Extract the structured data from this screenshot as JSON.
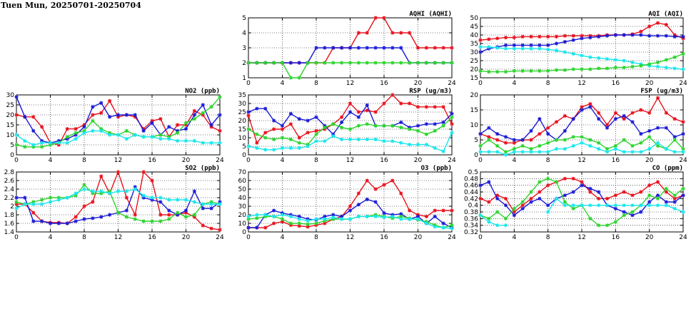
{
  "page": {
    "title": "Tuen Mun, 20250701-20250704"
  },
  "colors": {
    "red": "#e8101c",
    "blue": "#1a1ad6",
    "green": "#2cd42c",
    "cyan": "#19e6ec"
  },
  "chart_data": [
    {
      "id": "aqhi",
      "type": "line",
      "title": "AQHI (AQHI)",
      "xticks": [
        0,
        4,
        8,
        12,
        16,
        20,
        24
      ],
      "xlim": [
        0,
        24
      ],
      "ylim": [
        1,
        5
      ],
      "yticks": [
        1,
        2,
        3,
        4,
        5
      ],
      "grid": true,
      "series": [
        {
          "color": "red",
          "values": [
            2,
            2,
            2,
            2,
            2,
            2,
            2,
            2,
            2,
            2,
            3,
            3,
            3,
            4,
            4,
            5,
            5,
            4,
            4,
            4,
            3,
            3,
            3,
            3,
            3
          ]
        },
        {
          "color": "blue",
          "values": [
            2,
            2,
            2,
            2,
            2,
            2,
            2,
            2,
            3,
            3,
            3,
            3,
            3,
            3,
            3,
            3,
            3,
            3,
            3,
            2,
            2,
            2,
            2,
            2,
            2
          ]
        },
        {
          "color": "green",
          "values": [
            2,
            2,
            2,
            2,
            2,
            1,
            1,
            2,
            2,
            2,
            2,
            2,
            2,
            2,
            2,
            2,
            2,
            2,
            2,
            2,
            2,
            2,
            2,
            2,
            2
          ]
        }
      ]
    },
    {
      "id": "aqi",
      "type": "line",
      "title": "AQI (AQI)",
      "xticks": [
        0,
        4,
        8,
        12,
        16,
        20,
        24
      ],
      "xlim": [
        0,
        24
      ],
      "ylim": [
        15,
        50
      ],
      "yticks": [
        15,
        20,
        25,
        30,
        35,
        40,
        45,
        50
      ],
      "grid": true,
      "series": [
        {
          "color": "red",
          "values": [
            37,
            37.5,
            38,
            38.5,
            38.5,
            39,
            39,
            39,
            39,
            39,
            39.5,
            39.5,
            39.5,
            39.5,
            39.5,
            40,
            40,
            40,
            40.5,
            42,
            45,
            47,
            46,
            40,
            38
          ]
        },
        {
          "color": "blue",
          "values": [
            30,
            32,
            33,
            34,
            34,
            34,
            34,
            34,
            34,
            35,
            36,
            37,
            38,
            38.5,
            39,
            39.5,
            40,
            40,
            40,
            40,
            39.5,
            39.5,
            39.5,
            39,
            39
          ]
        },
        {
          "color": "cyan",
          "values": [
            33,
            33,
            32.5,
            32,
            32,
            32,
            32,
            32,
            31.5,
            31,
            30,
            29,
            28,
            27,
            26.5,
            26,
            25.5,
            25,
            24,
            23,
            22,
            21.5,
            21,
            20.5,
            20
          ]
        },
        {
          "color": "green",
          "values": [
            19,
            18.5,
            18.5,
            18.5,
            19,
            19,
            19,
            19,
            19,
            19.5,
            19.5,
            20,
            20,
            20,
            20.5,
            20.5,
            21,
            21,
            21.5,
            22,
            23,
            24,
            25.5,
            27,
            29
          ]
        }
      ]
    },
    {
      "id": "no2",
      "type": "line",
      "title": "NO2 (ppb)",
      "xticks": [
        0,
        4,
        8,
        12,
        16,
        20,
        24
      ],
      "xlim": [
        0,
        24
      ],
      "ylim": [
        0,
        30
      ],
      "yticks": [
        0,
        5,
        10,
        15,
        20,
        25,
        30
      ],
      "grid": true,
      "series": [
        {
          "color": "red",
          "values": [
            20,
            19,
            19,
            14,
            6,
            5,
            13,
            13,
            15,
            20,
            21,
            27,
            19,
            20,
            19,
            13,
            17,
            18,
            9,
            15,
            15,
            22,
            20,
            14,
            12
          ]
        },
        {
          "color": "blue",
          "values": [
            29,
            19,
            12,
            7,
            6,
            7,
            8,
            10,
            14,
            24,
            26,
            19,
            20,
            20,
            20,
            12,
            16,
            10,
            14,
            12,
            13,
            20,
            25,
            15,
            20
          ]
        },
        {
          "color": "green",
          "values": [
            5,
            4,
            4,
            4,
            5,
            6,
            9,
            11,
            12,
            17,
            13,
            11,
            10,
            12,
            10,
            9,
            9,
            10,
            9,
            11,
            16,
            18,
            21,
            24,
            29
          ]
        },
        {
          "color": "cyan",
          "values": [
            10,
            7,
            5,
            6,
            6,
            6,
            6,
            8,
            11,
            12,
            12,
            10,
            10,
            8,
            10,
            9,
            9,
            8,
            8,
            7,
            7,
            7,
            6,
            6,
            6
          ]
        }
      ]
    },
    {
      "id": "rsp",
      "type": "line",
      "title": "RSP (ug/m3)",
      "xticks": [
        0,
        4,
        8,
        12,
        16,
        20,
        24
      ],
      "xlim": [
        0,
        24
      ],
      "ylim": [
        0,
        35
      ],
      "yticks": [
        0,
        5,
        10,
        15,
        20,
        25,
        30,
        35
      ],
      "grid": true,
      "series": [
        {
          "color": "red",
          "values": [
            23,
            7,
            13,
            15,
            15,
            18,
            10,
            13,
            14,
            15,
            18,
            22,
            30,
            25,
            26,
            25,
            30,
            35,
            30,
            30,
            28,
            28,
            28,
            28,
            18
          ]
        },
        {
          "color": "blue",
          "values": [
            25,
            27,
            27,
            20,
            17,
            24,
            21,
            20,
            22,
            17,
            12,
            19,
            25,
            22,
            29,
            17,
            17,
            17,
            19,
            16,
            17,
            18,
            18,
            19,
            24
          ]
        },
        {
          "color": "green",
          "values": [
            15,
            12,
            10,
            9,
            10,
            9,
            7,
            6,
            12,
            16,
            18,
            16,
            15,
            17,
            18,
            17,
            17,
            17,
            16,
            15,
            14,
            12,
            14,
            17,
            22
          ]
        },
        {
          "color": "cyan",
          "values": [
            5,
            4,
            3,
            3,
            4,
            4,
            4,
            5,
            8,
            8,
            11,
            9,
            9,
            9,
            9,
            9,
            8,
            8,
            7,
            6,
            6,
            6,
            4,
            2,
            13
          ]
        }
      ]
    },
    {
      "id": "fsp",
      "type": "line",
      "title": "FSP (ug/m3)",
      "xticks": [
        0,
        4,
        8,
        12,
        16,
        20,
        24
      ],
      "xlim": [
        0,
        24
      ],
      "ylim": [
        0,
        20
      ],
      "yticks": [
        0,
        5,
        10,
        15,
        20
      ],
      "grid": true,
      "series": [
        {
          "color": "red",
          "values": [
            7,
            6,
            5,
            4,
            4,
            5,
            5,
            7,
            9,
            11,
            13,
            12,
            16,
            17,
            14,
            10,
            14,
            12,
            14,
            15,
            14,
            19,
            14,
            12,
            11
          ]
        },
        {
          "color": "blue",
          "values": [
            7,
            9,
            7,
            6,
            5,
            5,
            8,
            12,
            7,
            5,
            8,
            12,
            15,
            16,
            12,
            9,
            12,
            13,
            11,
            7,
            8,
            9,
            9,
            6,
            7
          ]
        },
        {
          "color": "green",
          "values": [
            3,
            5,
            3,
            1,
            2,
            3,
            2,
            3,
            4,
            5,
            5,
            6,
            6,
            5,
            4,
            2,
            3,
            5,
            3,
            4,
            6,
            3,
            2,
            5,
            2
          ]
        },
        {
          "color": "cyan",
          "values": [
            1,
            1,
            1,
            0,
            1,
            1,
            1,
            1,
            1,
            2,
            2,
            3,
            4,
            3,
            2,
            1,
            2,
            1,
            1,
            1,
            2,
            4,
            2,
            1,
            1
          ]
        }
      ]
    },
    {
      "id": "so2",
      "type": "line",
      "title": "SO2 (ppb)",
      "xticks": [
        0,
        4,
        8,
        12,
        16,
        20,
        24
      ],
      "xlim": [
        0,
        24
      ],
      "ylim": [
        1.4,
        2.8
      ],
      "yticks": [
        1.4,
        1.6,
        1.8,
        2.0,
        2.2,
        2.4,
        2.6,
        2.8
      ],
      "grid": true,
      "series": [
        {
          "color": "red",
          "values": [
            2.05,
            2.05,
            1.85,
            1.65,
            1.62,
            1.62,
            1.6,
            1.75,
            2.0,
            2.1,
            2.7,
            2.3,
            2.8,
            2.2,
            1.8,
            2.8,
            2.6,
            1.8,
            1.8,
            1.8,
            1.85,
            1.75,
            1.55,
            1.48,
            1.45
          ]
        },
        {
          "color": "blue",
          "values": [
            2.2,
            2.2,
            1.65,
            1.65,
            1.6,
            1.6,
            1.6,
            1.65,
            1.7,
            1.72,
            1.75,
            1.8,
            1.85,
            1.9,
            2.45,
            2.2,
            2.15,
            2.1,
            1.9,
            1.8,
            1.9,
            2.35,
            1.95,
            1.95,
            2.1
          ]
        },
        {
          "color": "green",
          "values": [
            2.1,
            2.05,
            2.1,
            2.15,
            2.2,
            2.2,
            2.2,
            2.25,
            2.5,
            2.3,
            2.3,
            2.35,
            1.85,
            1.75,
            1.7,
            1.65,
            1.65,
            1.65,
            1.7,
            1.85,
            1.75,
            1.8,
            2.05,
            2.1,
            2.05
          ]
        },
        {
          "color": "cyan",
          "values": [
            1.95,
            2.05,
            2.05,
            2.05,
            2.1,
            2.15,
            2.2,
            2.3,
            2.4,
            2.35,
            2.35,
            2.3,
            2.35,
            2.35,
            2.4,
            2.25,
            2.2,
            2.2,
            2.15,
            2.15,
            2.15,
            2.1,
            2.05,
            2.05,
            2.05
          ]
        }
      ]
    },
    {
      "id": "o3",
      "type": "line",
      "title": "O3 (ppb)",
      "xticks": [
        0,
        4,
        8,
        12,
        16,
        20,
        24
      ],
      "xlim": [
        0,
        24
      ],
      "ylim": [
        0,
        70
      ],
      "yticks": [
        0,
        10,
        20,
        30,
        40,
        50,
        60,
        70
      ],
      "grid": true,
      "series": [
        {
          "color": "red",
          "values": [
            5,
            5,
            5,
            10,
            12,
            8,
            7,
            6,
            8,
            10,
            15,
            18,
            30,
            45,
            60,
            50,
            55,
            60,
            45,
            25,
            20,
            18,
            25,
            25,
            25
          ]
        },
        {
          "color": "blue",
          "values": [
            5,
            5,
            20,
            25,
            22,
            20,
            18,
            15,
            14,
            18,
            20,
            18,
            25,
            32,
            38,
            35,
            22,
            20,
            21,
            15,
            18,
            10,
            18,
            10,
            5
          ]
        },
        {
          "color": "green",
          "values": [
            15,
            16,
            18,
            18,
            15,
            10,
            10,
            9,
            10,
            13,
            15,
            15,
            15,
            18,
            18,
            20,
            18,
            16,
            18,
            16,
            14,
            12,
            8,
            5,
            8
          ]
        },
        {
          "color": "cyan",
          "values": [
            18,
            20,
            20,
            18,
            20,
            18,
            15,
            13,
            15,
            15,
            17,
            15,
            15,
            18,
            18,
            18,
            17,
            18,
            15,
            15,
            15,
            10,
            6,
            5,
            4
          ]
        }
      ]
    },
    {
      "id": "co",
      "type": "line",
      "title": "CO (ppm)",
      "xticks": [
        0,
        4,
        8,
        12,
        16,
        20,
        24
      ],
      "xlim": [
        0,
        24
      ],
      "ylim": [
        0.32,
        0.5
      ],
      "yticks": [
        0.32,
        0.34,
        0.36,
        0.38,
        0.4,
        0.42,
        0.44,
        0.46,
        0.48,
        0.5
      ],
      "grid": true,
      "series": [
        {
          "color": "red",
          "values": [
            0.42,
            0.41,
            0.43,
            0.42,
            0.38,
            0.4,
            0.42,
            0.44,
            0.46,
            0.47,
            0.48,
            0.48,
            0.47,
            0.44,
            0.42,
            0.42,
            0.43,
            0.44,
            0.43,
            0.44,
            0.46,
            0.47,
            0.44,
            0.42,
            0.43
          ]
        },
        {
          "color": "blue",
          "values": [
            0.46,
            0.47,
            0.42,
            0.4,
            0.37,
            0.39,
            0.41,
            0.42,
            0.4,
            0.42,
            0.43,
            0.44,
            0.46,
            0.45,
            0.44,
            0.4,
            0.39,
            0.38,
            0.37,
            0.38,
            0.41,
            0.43,
            0.41,
            0.41,
            0.43
          ]
        },
        {
          "color": "green",
          "values": [
            0.37,
            0.36,
            0.38,
            0.36,
            0.39,
            0.41,
            0.44,
            0.47,
            0.48,
            0.47,
            0.41,
            0.39,
            0.4,
            0.36,
            0.34,
            0.34,
            0.35,
            0.37,
            0.38,
            0.4,
            0.43,
            0.42,
            0.45,
            0.43,
            0.45
          ]
        },
        {
          "color": "cyan",
          "values": [
            0.37,
            0.35,
            0.34,
            0.34,
            null,
            null,
            null,
            null,
            0.38,
            0.42,
            0.4,
            0.4,
            0.4,
            0.4,
            0.4,
            0.4,
            0.4,
            0.4,
            0.4,
            0.4,
            0.4,
            0.4,
            0.4,
            0.39,
            0.38
          ]
        }
      ]
    }
  ]
}
